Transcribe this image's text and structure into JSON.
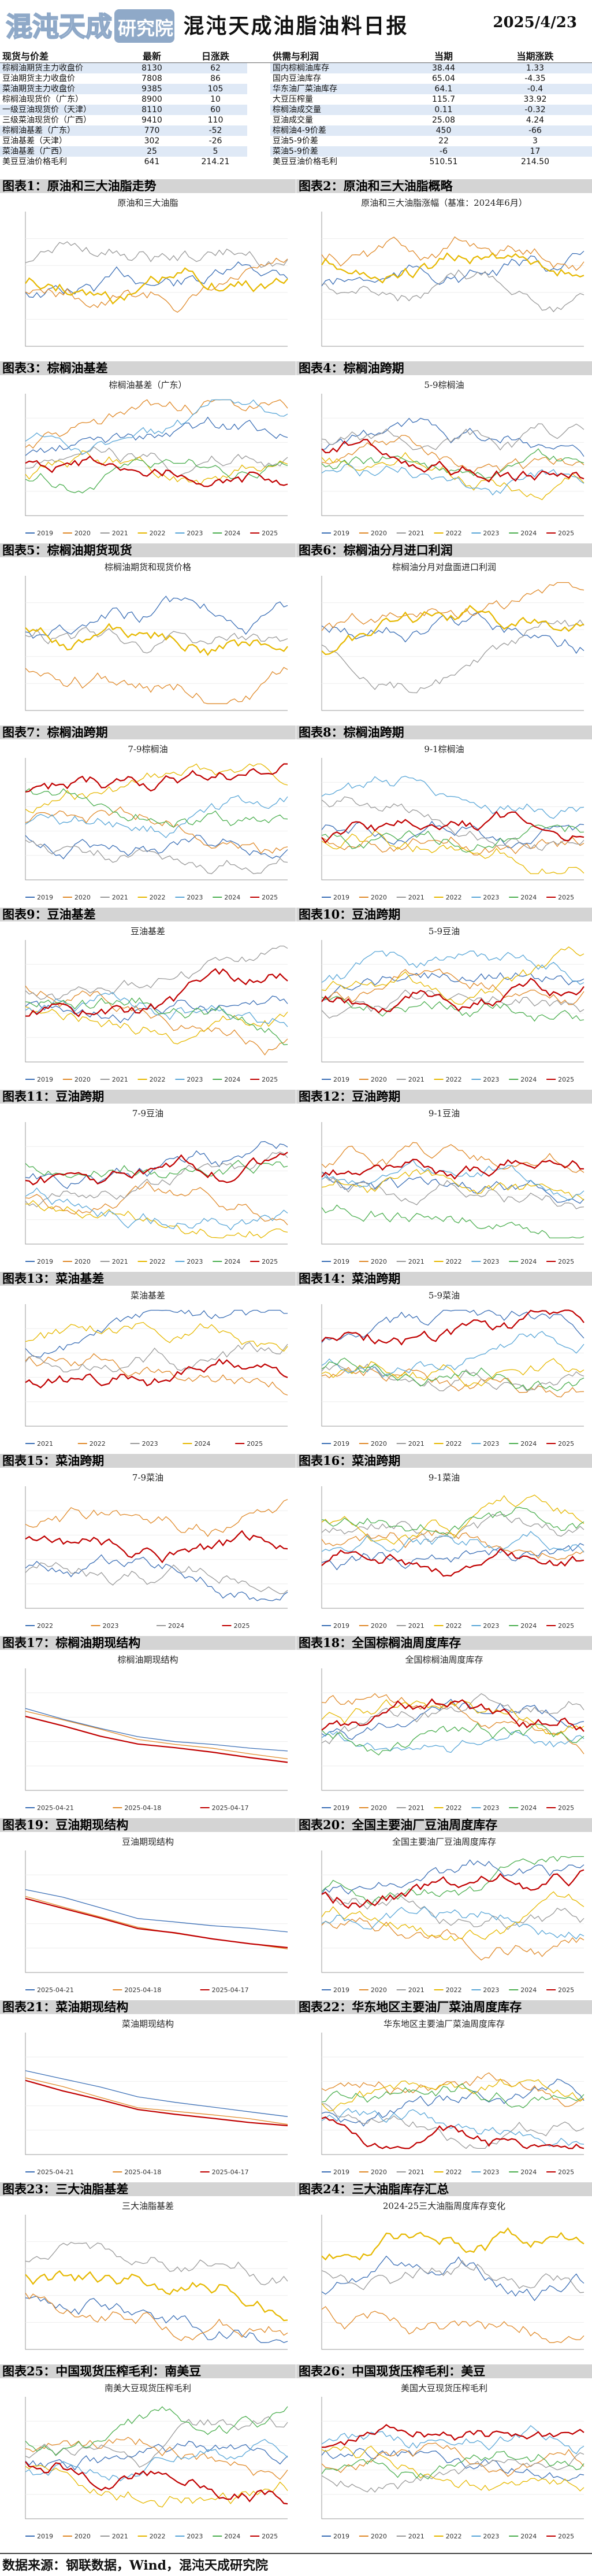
{
  "header": {
    "title": "混沌天成油脂油料日报",
    "date": "2025/4/23",
    "logo_text": "混沌天成研究院"
  },
  "table": {
    "left_headers": [
      "现货与价差",
      "最新",
      "日涨跌"
    ],
    "right_headers": [
      "供需与利润",
      "当期",
      "当期涨跌"
    ],
    "rows": [
      {
        "l": [
          "棕榈油期货主力收盘价",
          "8130",
          "62"
        ],
        "r": [
          "国内棕榈油库存",
          "38.44",
          "1.33"
        ]
      },
      {
        "l": [
          "豆油期货主力收盘价",
          "7808",
          "86"
        ],
        "r": [
          "国内豆油库存",
          "65.04",
          "-4.35"
        ]
      },
      {
        "l": [
          "菜油期货主力收盘价",
          "9385",
          "105"
        ],
        "r": [
          "华东油厂菜油库存",
          "64.1",
          "-0.4"
        ]
      },
      {
        "l": [
          "棕榈油现货价（广东）",
          "8900",
          "10"
        ],
        "r": [
          "大豆压榨量",
          "115.7",
          "33.92"
        ]
      },
      {
        "l": [
          "一级豆油现货价（天津）",
          "8110",
          "60"
        ],
        "r": [
          "棕榈油成交量",
          "0.11",
          "-0.32"
        ]
      },
      {
        "l": [
          "三级菜油现货价（广西）",
          "9410",
          "110"
        ],
        "r": [
          "豆油成交量",
          "25.08",
          "4.24"
        ]
      },
      {
        "l": [
          "棕榈油基差（广东）",
          "770",
          "-52"
        ],
        "r": [
          "棕榈油4-9价差",
          "450",
          "-66"
        ]
      },
      {
        "l": [
          "豆油基差（天津）",
          "302",
          "-26"
        ],
        "r": [
          "豆油5-9价差",
          "22",
          "3"
        ]
      },
      {
        "l": [
          "菜油基差（广西）",
          "25",
          "5"
        ],
        "r": [
          "菜油5-9价差",
          "-6",
          "17"
        ]
      },
      {
        "l": [
          "美豆豆油价格毛利",
          "641",
          "214.21"
        ],
        "r": [
          "美豆豆油价格毛利",
          "510.51",
          "214.50"
        ]
      }
    ]
  },
  "panels": [
    {
      "label": "图表1：原油和三大油脂走势",
      "chart_title": "原油和三大油脂",
      "kind": "seasonal",
      "legend": []
    },
    {
      "label": "图表2：原油和三大油脂概略",
      "chart_title": "原油和三大油脂涨幅（基准：2024年6月）",
      "kind": "seasonal",
      "legend": []
    },
    {
      "label": "图表3：棕榈油基差",
      "chart_title": "棕榈油基差（广东）",
      "kind": "seasonal",
      "legend": [
        "2019",
        "2020",
        "2021",
        "2022",
        "2023",
        "2024",
        "2025"
      ]
    },
    {
      "label": "图表4：棕榈油跨期",
      "chart_title": "5-9棕榈油",
      "kind": "seasonal",
      "legend": [
        "2019",
        "2020",
        "2021",
        "2022",
        "2023",
        "2024",
        "2025"
      ]
    },
    {
      "label": "图表5：棕榈油期货现货",
      "chart_title": "棕榈油期货和现货价格",
      "kind": "seasonal",
      "legend": []
    },
    {
      "label": "图表6：棕榈油分月进口利润",
      "chart_title": "棕榈油分月对盘面进口利润",
      "kind": "seasonal",
      "legend": []
    },
    {
      "label": "图表7：棕榈油跨期",
      "chart_title": "7-9棕榈油",
      "kind": "seasonal",
      "legend": [
        "2019",
        "2020",
        "2021",
        "2022",
        "2023",
        "2024",
        "2025"
      ]
    },
    {
      "label": "图表8：棕榈油跨期",
      "chart_title": "9-1棕榈油",
      "kind": "seasonal",
      "legend": [
        "2019",
        "2020",
        "2021",
        "2022",
        "2023",
        "2024",
        "2025"
      ]
    },
    {
      "label": "图表9：豆油基差",
      "chart_title": "豆油基差",
      "kind": "seasonal",
      "legend": [
        "2019",
        "2020",
        "2021",
        "2022",
        "2023",
        "2024",
        "2025"
      ]
    },
    {
      "label": "图表10：豆油跨期",
      "chart_title": "5-9豆油",
      "kind": "seasonal",
      "legend": [
        "2019",
        "2020",
        "2021",
        "2022",
        "2023",
        "2024",
        "2025"
      ]
    },
    {
      "label": "图表11：豆油跨期",
      "chart_title": "7-9豆油",
      "kind": "seasonal",
      "legend": [
        "2019",
        "2020",
        "2021",
        "2022",
        "2023",
        "2024",
        "2025"
      ]
    },
    {
      "label": "图表12：豆油跨期",
      "chart_title": "9-1豆油",
      "kind": "seasonal",
      "legend": [
        "2019",
        "2020",
        "2021",
        "2022",
        "2023",
        "2024",
        "2025"
      ]
    },
    {
      "label": "图表13：菜油基差",
      "chart_title": "菜油基差",
      "kind": "seasonal",
      "legend": [
        "2021",
        "2022",
        "2023",
        "2024",
        "2025"
      ]
    },
    {
      "label": "图表14：菜油跨期",
      "chart_title": "5-9菜油",
      "kind": "seasonal",
      "legend": [
        "2019",
        "2020",
        "2021",
        "2022",
        "2023",
        "2024",
        "2025"
      ]
    },
    {
      "label": "图表15：菜油跨期",
      "chart_title": "7-9菜油",
      "kind": "seasonal",
      "legend": [
        "2022",
        "2023",
        "2024",
        "2025"
      ]
    },
    {
      "label": "图表16：菜油跨期",
      "chart_title": "9-1菜油",
      "kind": "seasonal",
      "legend": [
        "2019",
        "2020",
        "2021",
        "2022",
        "2023",
        "2024",
        "2025"
      ]
    },
    {
      "label": "图表17：棕榈油期现结构",
      "chart_title": "棕榈油期现结构",
      "kind": "structure",
      "legend": [
        "2025-04-21",
        "2025-04-18",
        "2025-04-17"
      ]
    },
    {
      "label": "图表18：全国棕榈油周度库存",
      "chart_title": "全国棕榈油周度库存",
      "kind": "seasonal",
      "legend": [
        "2019",
        "2020",
        "2021",
        "2022",
        "2023",
        "2024",
        "2025"
      ]
    },
    {
      "label": "图表19：豆油期现结构",
      "chart_title": "豆油期现结构",
      "kind": "structure",
      "legend": [
        "2025-04-21",
        "2025-04-18",
        "2025-04-17"
      ]
    },
    {
      "label": "图表20：全国主要油厂豆油周度库存",
      "chart_title": "全国主要油厂豆油周度库存",
      "kind": "seasonal",
      "legend": [
        "2019",
        "2020",
        "2021",
        "2022",
        "2023",
        "2024",
        "2025"
      ]
    },
    {
      "label": "图表21：菜油期现结构",
      "chart_title": "菜油期现结构",
      "kind": "structure",
      "legend": [
        "2025-04-21",
        "2025-04-18",
        "2025-04-17"
      ]
    },
    {
      "label": "图表22：华东地区主要油厂菜油周度库存",
      "chart_title": "华东地区主要油厂菜油周度库存",
      "kind": "seasonal",
      "legend": [
        "2019",
        "2020",
        "2021",
        "2022",
        "2023",
        "2024",
        "2025"
      ]
    },
    {
      "label": "图表23：三大油脂基差",
      "chart_title": "三大油脂基差",
      "kind": "seasonal",
      "legend": []
    },
    {
      "label": "图表24：三大油脂库存汇总",
      "chart_title": "2024-25三大油脂周度库存变化",
      "kind": "seasonal",
      "legend": []
    },
    {
      "label": "图表25：中国现货压榨毛利：南美豆",
      "chart_title": "南美大豆现货压榨毛利",
      "kind": "seasonal",
      "legend": [
        "2019",
        "2020",
        "2021",
        "2022",
        "2023",
        "2024",
        "2025"
      ]
    },
    {
      "label": "图表26：中国现货压榨毛利：美豆",
      "chart_title": "美国大豆现货压榨毛利",
      "kind": "seasonal",
      "legend": [
        "2019",
        "2020",
        "2021",
        "2022",
        "2023",
        "2024",
        "2025"
      ]
    }
  ],
  "footer": "数据来源：钢联数据，Wind，混沌天成研究院",
  "colors": {
    "table_band": "#dfe9f6",
    "title_bar": "#d4d4d4",
    "accent": "#c00000"
  }
}
